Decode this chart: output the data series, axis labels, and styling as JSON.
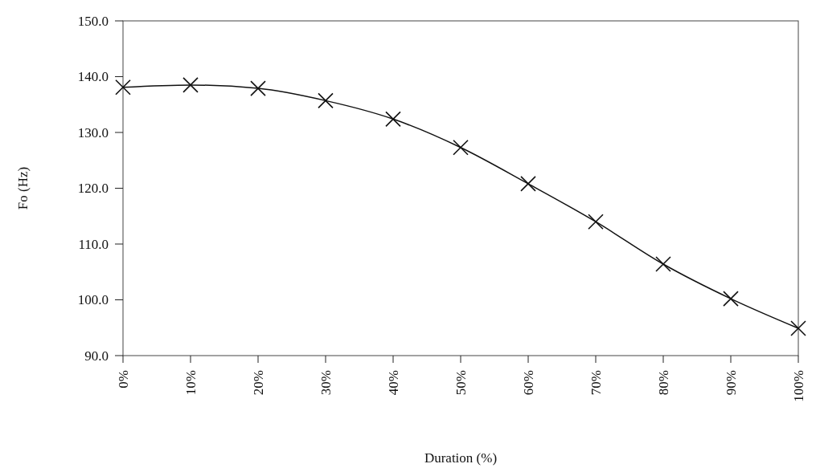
{
  "chart_data": {
    "type": "line",
    "xlabel": "Duration (%)",
    "ylabel": "Fo (Hz)",
    "categories": [
      "0%",
      "10%",
      "20%",
      "30%",
      "40%",
      "50%",
      "60%",
      "70%",
      "80%",
      "90%",
      "100%"
    ],
    "series": [
      {
        "color": "#111111",
        "values": [
          138.1,
          138.5,
          137.9,
          135.7,
          132.4,
          127.3,
          120.8,
          114.0,
          106.4,
          100.2,
          94.9
        ]
      }
    ],
    "ylim": [
      90,
      150
    ],
    "yticks": [
      {
        "value": 90,
        "label": "90.0"
      },
      {
        "value": 100,
        "label": "100.0"
      },
      {
        "value": 110,
        "label": "110.0"
      },
      {
        "value": 120,
        "label": "120.0"
      },
      {
        "value": 130,
        "label": "130.0"
      },
      {
        "value": 140,
        "label": "140.0"
      },
      {
        "value": 150,
        "label": "150.0"
      }
    ],
    "marker": "cross",
    "grid": false
  }
}
